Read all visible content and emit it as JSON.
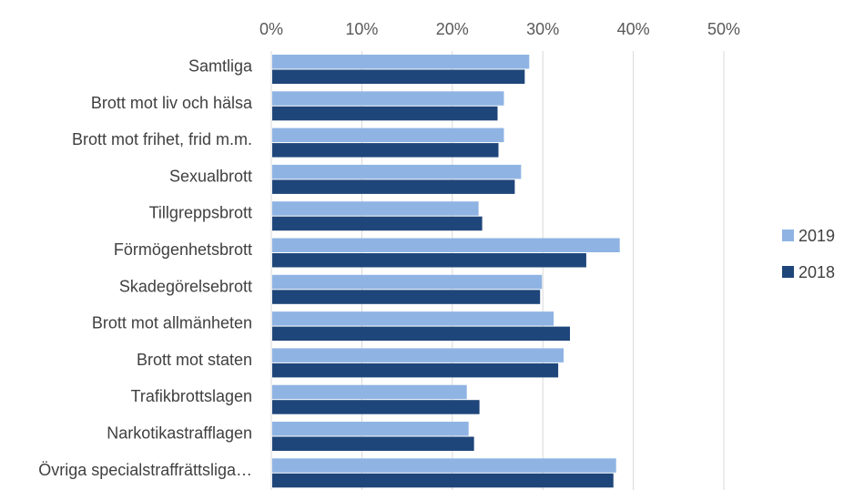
{
  "chart_data": {
    "type": "bar",
    "orientation": "horizontal",
    "categories": [
      "Samtliga",
      "Brott mot liv och hälsa",
      "Brott mot frihet, frid m.m.",
      "Sexualbrott",
      "Tillgreppsbrott",
      "Förmögenhetsbrott",
      "Skadegörelsebrott",
      "Brott mot allmänheten",
      "Brott mot staten",
      "Trafikbrottslagen",
      "Narkotikastrafflagen",
      "Övriga specialstraffrättsliga…"
    ],
    "series": [
      {
        "name": "2019",
        "color": "#8FB4E3",
        "values": [
          28.5,
          25.7,
          25.7,
          27.6,
          22.9,
          38.5,
          29.9,
          31.2,
          32.3,
          21.6,
          21.8,
          38.1
        ]
      },
      {
        "name": "2018",
        "color": "#1F467A",
        "values": [
          28.0,
          25.0,
          25.1,
          26.9,
          23.3,
          34.8,
          29.7,
          33.0,
          31.7,
          23.0,
          22.4,
          37.8
        ]
      }
    ],
    "xlim": [
      0,
      50
    ],
    "ticks": [
      "0%",
      "10%",
      "20%",
      "30%",
      "40%",
      "50%"
    ],
    "tick_values": [
      0,
      10,
      20,
      30,
      40,
      50
    ],
    "legend_position": "right",
    "grid": true
  }
}
